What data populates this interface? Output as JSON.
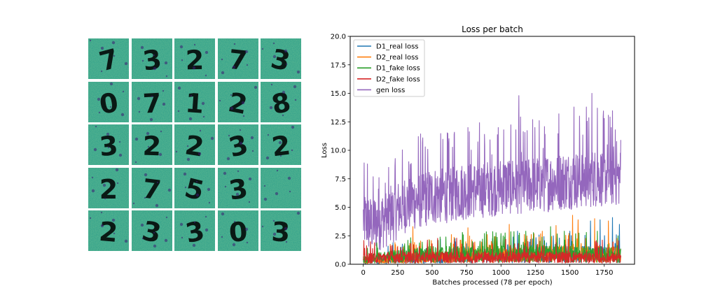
{
  "sample_grid": {
    "rows": 5,
    "cols": 5,
    "background_color": "#2a9d8a",
    "stroke_color": "#3b1c73",
    "tiles": [
      {
        "row": 0,
        "col": 0,
        "glyph": "7"
      },
      {
        "row": 0,
        "col": 1,
        "glyph": "3"
      },
      {
        "row": 0,
        "col": 2,
        "glyph": "2"
      },
      {
        "row": 0,
        "col": 3,
        "glyph": "7"
      },
      {
        "row": 0,
        "col": 4,
        "glyph": "3"
      },
      {
        "row": 1,
        "col": 0,
        "glyph": "0"
      },
      {
        "row": 1,
        "col": 1,
        "glyph": "7"
      },
      {
        "row": 1,
        "col": 2,
        "glyph": "1"
      },
      {
        "row": 1,
        "col": 3,
        "glyph": "2"
      },
      {
        "row": 1,
        "col": 4,
        "glyph": "8"
      },
      {
        "row": 2,
        "col": 0,
        "glyph": "3"
      },
      {
        "row": 2,
        "col": 1,
        "glyph": "2"
      },
      {
        "row": 2,
        "col": 2,
        "glyph": "2"
      },
      {
        "row": 2,
        "col": 3,
        "glyph": "3"
      },
      {
        "row": 2,
        "col": 4,
        "glyph": "2"
      },
      {
        "row": 3,
        "col": 0,
        "glyph": "2"
      },
      {
        "row": 3,
        "col": 1,
        "glyph": "7"
      },
      {
        "row": 3,
        "col": 2,
        "glyph": "5"
      },
      {
        "row": 3,
        "col": 3,
        "glyph": "3"
      },
      {
        "row": 3,
        "col": 4,
        "glyph": ""
      },
      {
        "row": 4,
        "col": 0,
        "glyph": "2"
      },
      {
        "row": 4,
        "col": 1,
        "glyph": "3"
      },
      {
        "row": 4,
        "col": 2,
        "glyph": "3"
      },
      {
        "row": 4,
        "col": 3,
        "glyph": "0"
      },
      {
        "row": 4,
        "col": 4,
        "glyph": "3"
      }
    ]
  },
  "chart_data": {
    "type": "line",
    "title": "Loss per batch",
    "xlabel": "Batches processed (78 per epoch)",
    "ylabel": "Loss",
    "xlim": [
      -95,
      1970
    ],
    "ylim": [
      0,
      20
    ],
    "xticks": [
      0,
      250,
      500,
      750,
      1000,
      1250,
      1500,
      1750
    ],
    "yticks": [
      0.0,
      2.5,
      5.0,
      7.5,
      10.0,
      12.5,
      15.0,
      17.5,
      20.0
    ],
    "grid": false,
    "legend_position": "top-left",
    "num_points": 1872,
    "series": [
      {
        "name": "D1_real loss",
        "color": "#1f77b4",
        "description_points": [
          [
            0,
            0.3
          ],
          [
            250,
            0.5
          ],
          [
            500,
            0.6
          ],
          [
            750,
            0.7
          ],
          [
            1000,
            0.8
          ],
          [
            1250,
            0.9
          ],
          [
            1500,
            1.0
          ],
          [
            1750,
            1.0
          ],
          [
            1870,
            0.9
          ]
        ],
        "peaks": [
          [
            460,
            1.4
          ],
          [
            560,
            2.2
          ],
          [
            750,
            1.8
          ],
          [
            880,
            2.0
          ],
          [
            1000,
            2.5
          ],
          [
            1120,
            2.9
          ],
          [
            1380,
            2.5
          ],
          [
            1500,
            2.9
          ],
          [
            1650,
            3.8
          ],
          [
            1720,
            3.9
          ],
          [
            1810,
            4.1
          ],
          [
            1860,
            3.5
          ]
        ]
      },
      {
        "name": "D2_real loss",
        "color": "#ff7f0e",
        "description_points": [
          [
            0,
            0.3
          ],
          [
            250,
            0.5
          ],
          [
            500,
            0.7
          ],
          [
            750,
            0.8
          ],
          [
            1000,
            0.9
          ],
          [
            1250,
            1.0
          ],
          [
            1500,
            1.0
          ],
          [
            1750,
            1.0
          ],
          [
            1870,
            1.0
          ]
        ],
        "peaks": [
          [
            230,
            1.9
          ],
          [
            360,
            3.3
          ],
          [
            500,
            1.7
          ],
          [
            640,
            2.6
          ],
          [
            760,
            3.2
          ],
          [
            900,
            2.6
          ],
          [
            1060,
            3.5
          ],
          [
            1300,
            2.9
          ],
          [
            1400,
            3.4
          ],
          [
            1520,
            4.3
          ],
          [
            1560,
            3.9
          ],
          [
            1680,
            4.0
          ],
          [
            1780,
            3.8
          ]
        ]
      },
      {
        "name": "D1_fake loss",
        "color": "#2ca02c",
        "description_points": [
          [
            0,
            0.5
          ],
          [
            250,
            0.8
          ],
          [
            500,
            1.0
          ],
          [
            750,
            1.0
          ],
          [
            1000,
            1.1
          ],
          [
            1250,
            1.1
          ],
          [
            1500,
            1.0
          ],
          [
            1750,
            1.0
          ],
          [
            1870,
            0.9
          ]
        ],
        "peaks": [
          [
            100,
            1.5
          ],
          [
            300,
            1.8
          ],
          [
            480,
            2.1
          ],
          [
            600,
            2.4
          ],
          [
            720,
            2.8
          ],
          [
            880,
            2.7
          ],
          [
            1000,
            2.7
          ],
          [
            1180,
            2.9
          ],
          [
            1360,
            3.3
          ],
          [
            1460,
            2.9
          ],
          [
            1620,
            2.8
          ],
          [
            1700,
            2.9
          ],
          [
            1850,
            2.5
          ]
        ]
      },
      {
        "name": "D2_fake loss",
        "color": "#d62728",
        "description_points": [
          [
            0,
            0.6
          ],
          [
            250,
            0.7
          ],
          [
            500,
            0.7
          ],
          [
            750,
            0.7
          ],
          [
            1000,
            0.7
          ],
          [
            1250,
            0.7
          ],
          [
            1500,
            0.7
          ],
          [
            1750,
            0.6
          ],
          [
            1870,
            0.6
          ]
        ],
        "peaks": [
          [
            10,
            1.4
          ],
          [
            200,
            1.6
          ],
          [
            500,
            1.8
          ],
          [
            800,
            1.9
          ],
          [
            1100,
            1.8
          ],
          [
            1400,
            1.9
          ],
          [
            1700,
            1.9
          ]
        ]
      },
      {
        "name": "gen loss",
        "color": "#9467bd",
        "description_points": [
          [
            0,
            4.0
          ],
          [
            50,
            3.5
          ],
          [
            100,
            3.7
          ],
          [
            200,
            4.3
          ],
          [
            300,
            5.3
          ],
          [
            400,
            5.7
          ],
          [
            500,
            6.0
          ],
          [
            600,
            6.2
          ],
          [
            700,
            6.4
          ],
          [
            800,
            6.6
          ],
          [
            900,
            6.7
          ],
          [
            1000,
            6.9
          ],
          [
            1100,
            7.0
          ],
          [
            1200,
            7.0
          ],
          [
            1300,
            7.1
          ],
          [
            1400,
            7.3
          ],
          [
            1500,
            7.4
          ],
          [
            1600,
            7.5
          ],
          [
            1700,
            7.6
          ],
          [
            1800,
            7.7
          ],
          [
            1870,
            7.6
          ]
        ],
        "peaks": [
          [
            30,
            8.8
          ],
          [
            110,
            6.6
          ],
          [
            230,
            8.6
          ],
          [
            330,
            9.0
          ],
          [
            450,
            10.3
          ],
          [
            620,
            10.7
          ],
          [
            660,
            11.4
          ],
          [
            760,
            12.0
          ],
          [
            880,
            11.4
          ],
          [
            980,
            12.0
          ],
          [
            1020,
            11.8
          ],
          [
            1130,
            14.8
          ],
          [
            1230,
            12.7
          ],
          [
            1320,
            11.4
          ],
          [
            1420,
            13.2
          ],
          [
            1530,
            13.8
          ],
          [
            1570,
            13.0
          ],
          [
            1620,
            13.8
          ],
          [
            1660,
            15.0
          ],
          [
            1700,
            13.7
          ],
          [
            1750,
            12.8
          ],
          [
            1800,
            12.0
          ],
          [
            1830,
            11.8
          ],
          [
            1870,
            10.9
          ]
        ]
      }
    ]
  }
}
